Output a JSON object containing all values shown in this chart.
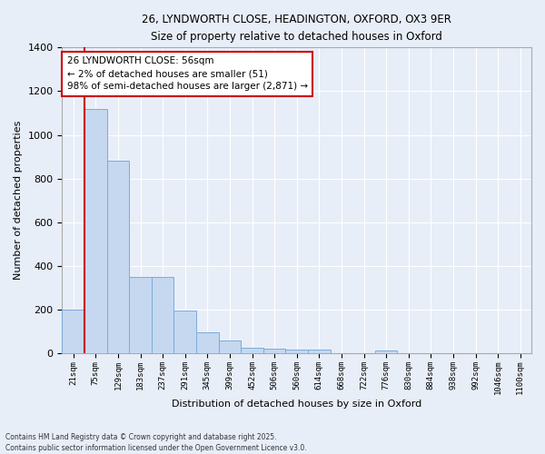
{
  "title_line1": "26, LYNDWORTH CLOSE, HEADINGTON, OXFORD, OX3 9ER",
  "title_line2": "Size of property relative to detached houses in Oxford",
  "xlabel": "Distribution of detached houses by size in Oxford",
  "ylabel": "Number of detached properties",
  "categories": [
    "21sqm",
    "75sqm",
    "129sqm",
    "183sqm",
    "237sqm",
    "291sqm",
    "345sqm",
    "399sqm",
    "452sqm",
    "506sqm",
    "560sqm",
    "614sqm",
    "668sqm",
    "722sqm",
    "776sqm",
    "830sqm",
    "884sqm",
    "938sqm",
    "992sqm",
    "1046sqm",
    "1100sqm"
  ],
  "values": [
    200,
    1120,
    880,
    350,
    350,
    195,
    95,
    60,
    25,
    22,
    18,
    18,
    0,
    0,
    15,
    0,
    0,
    0,
    0,
    0,
    0
  ],
  "bar_color": "#c5d8f0",
  "bar_edge_color": "#7aabdb",
  "vline_color": "#cc0000",
  "annotation_text": "26 LYNDWORTH CLOSE: 56sqm\n← 2% of detached houses are smaller (51)\n98% of semi-detached houses are larger (2,871) →",
  "annotation_box_facecolor": "#ffffff",
  "annotation_box_edgecolor": "#cc0000",
  "background_color": "#e8eef8",
  "grid_color": "#ffffff",
  "ylim": [
    0,
    1400
  ],
  "yticks": [
    0,
    200,
    400,
    600,
    800,
    1000,
    1200,
    1400
  ],
  "footer_text": "Contains HM Land Registry data © Crown copyright and database right 2025.\nContains public sector information licensed under the Open Government Licence v3.0."
}
